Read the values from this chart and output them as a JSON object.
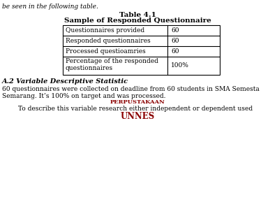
{
  "title1": "Table 4.1",
  "title2": "Sample of Responded Questionnaire",
  "table_rows": [
    [
      "Questionnaires provided",
      "60"
    ],
    [
      "Responded questionnaires",
      "60"
    ],
    [
      "Processed questioamries",
      "60"
    ],
    [
      "Percentage of the responded\nquestionnaires",
      "100%"
    ]
  ],
  "section_heading": "A.2 Variable Descriptive Statistic",
  "para1": "60 questionnaires were collected on deadline from 60 students in SMA Semesta",
  "para2": "Semarang. It’s 100% on target and was processed.",
  "perpustakaan": "PERPUSTAKAAN",
  "unnes": "UNNES",
  "para3": "        To describe this variable research either independent or dependent used",
  "top_text": "be seen in the following table.",
  "bg_color": "#ffffff",
  "text_color": "#000000",
  "table_border_color": "#000000",
  "title_fontsize": 7.5,
  "body_fontsize": 6.5,
  "section_fontsize": 7.0,
  "perp_color": "#8B0000",
  "unnes_color": "#8B0000"
}
